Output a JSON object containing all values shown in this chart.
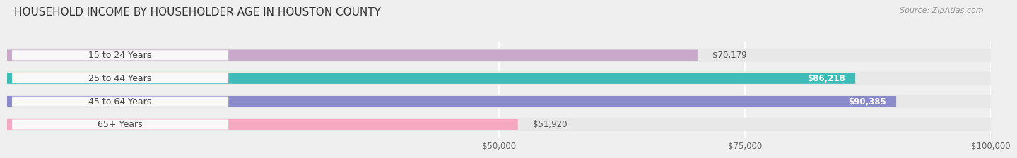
{
  "title": "HOUSEHOLD INCOME BY HOUSEHOLDER AGE IN HOUSTON COUNTY",
  "source": "Source: ZipAtlas.com",
  "categories": [
    "15 to 24 Years",
    "25 to 44 Years",
    "45 to 64 Years",
    "65+ Years"
  ],
  "values": [
    70179,
    86218,
    90385,
    51920
  ],
  "bar_colors": [
    "#c9a8cc",
    "#3dbcb8",
    "#8b8bcc",
    "#f5a8c0"
  ],
  "value_inside": [
    false,
    true,
    true,
    false
  ],
  "bar_height": 0.58,
  "xlim": [
    0,
    100000
  ],
  "xticks": [
    50000,
    75000,
    100000
  ],
  "xtick_labels": [
    "$50,000",
    "$75,000",
    "$100,000"
  ],
  "background_color": "#efefef",
  "bar_bg_color": "#e4e4e4",
  "row_bg_color": "#e8e8e8",
  "grid_color": "#ffffff",
  "title_fontsize": 11,
  "source_fontsize": 8,
  "label_fontsize": 9,
  "value_fontsize": 8.5,
  "tick_fontsize": 8.5,
  "pill_bg_color": "#f8f8f8",
  "pill_text_color": "#444444",
  "value_inside_color": "#ffffff",
  "value_outside_color": "#555555"
}
